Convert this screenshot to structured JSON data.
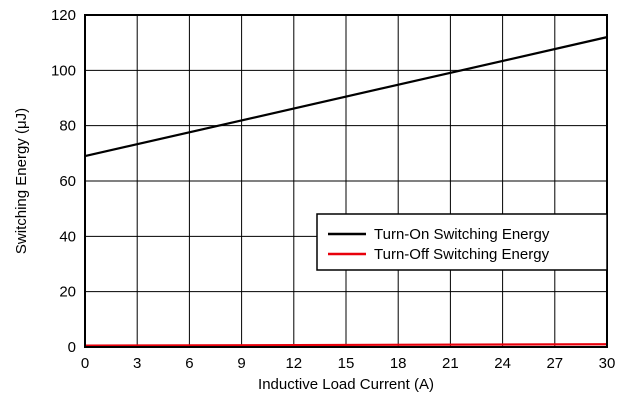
{
  "chart_data": {
    "type": "line",
    "xlabel": "Inductive Load Current (A)",
    "ylabel": "Switching Energy (μJ)",
    "xlim": [
      0,
      30
    ],
    "ylim": [
      0,
      120
    ],
    "x_ticks": [
      0,
      3,
      6,
      9,
      12,
      15,
      18,
      21,
      24,
      27,
      30
    ],
    "y_ticks": [
      0,
      20,
      40,
      60,
      80,
      100,
      120
    ],
    "grid": true,
    "legend_position": "right",
    "series": [
      {
        "name": "Turn-On Switching Energy",
        "color": "#000000",
        "x": [
          0,
          30
        ],
        "y": [
          69,
          112
        ]
      },
      {
        "name": "Turn-Off Switching Energy",
        "color": "#e8000b",
        "x": [
          0,
          30
        ],
        "y": [
          0.5,
          1
        ]
      }
    ]
  }
}
